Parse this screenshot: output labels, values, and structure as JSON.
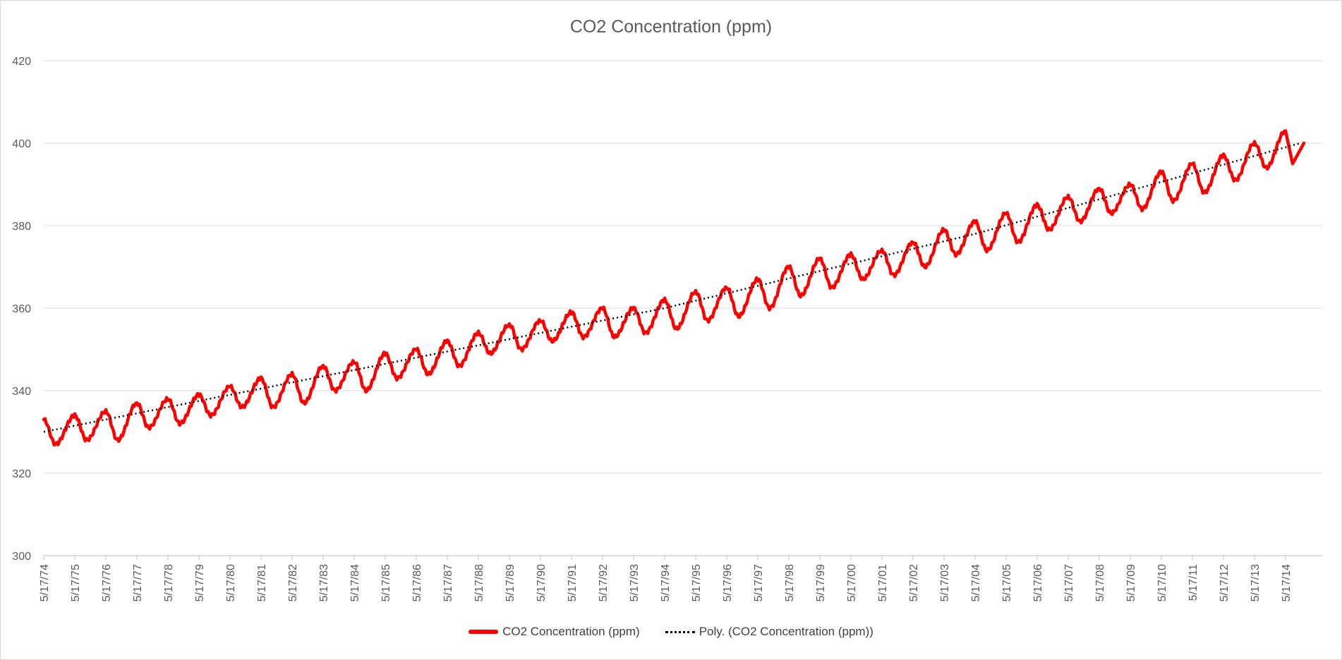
{
  "chart_data": {
    "type": "line",
    "title": "CO2 Concentration (ppm)",
    "xlabel": "",
    "ylabel": "",
    "ylim": [
      300,
      420
    ],
    "y_ticks": [
      "300",
      "320",
      "340",
      "360",
      "380",
      "400",
      "420"
    ],
    "x_ticks": [
      "5/17/74",
      "5/17/75",
      "5/17/76",
      "5/17/77",
      "5/17/78",
      "5/17/79",
      "5/17/80",
      "5/17/81",
      "5/17/82",
      "5/17/83",
      "5/17/84",
      "5/17/85",
      "5/17/86",
      "5/17/87",
      "5/17/88",
      "5/17/89",
      "5/17/90",
      "5/17/91",
      "5/17/92",
      "5/17/93",
      "5/17/94",
      "5/17/95",
      "5/17/96",
      "5/17/97",
      "5/17/98",
      "5/17/99",
      "5/17/00",
      "5/17/01",
      "5/17/02",
      "5/17/03",
      "5/17/04",
      "5/17/05",
      "5/17/06",
      "5/17/07",
      "5/17/08",
      "5/17/09",
      "5/17/10",
      "5/17/11",
      "5/17/12",
      "5/17/13",
      "5/17/14"
    ],
    "grid": true,
    "legend_position": "bottom",
    "series": [
      {
        "name": "CO2 Concentration (ppm)",
        "color": "#ff0000",
        "style": "solid",
        "x": [
          "5/17/74",
          "5/17/75",
          "5/17/76",
          "5/17/77",
          "5/17/78",
          "5/17/79",
          "5/17/80",
          "5/17/81",
          "5/17/82",
          "5/17/83",
          "5/17/84",
          "5/17/85",
          "5/17/86",
          "5/17/87",
          "5/17/88",
          "5/17/89",
          "5/17/90",
          "5/17/91",
          "5/17/92",
          "5/17/93",
          "5/17/94",
          "5/17/95",
          "5/17/96",
          "5/17/97",
          "5/17/98",
          "5/17/99",
          "5/17/00",
          "5/17/01",
          "5/17/02",
          "5/17/03",
          "5/17/04",
          "5/17/05",
          "5/17/06",
          "5/17/07",
          "5/17/08",
          "5/17/09",
          "5/17/10",
          "5/17/11",
          "5/17/12",
          "5/17/13",
          "5/17/14"
        ],
        "y_max": [
          333,
          334,
          335,
          337,
          338,
          339,
          341,
          343,
          344,
          346,
          347,
          349,
          350,
          352,
          354,
          356,
          357,
          359,
          360,
          360,
          362,
          364,
          365,
          367,
          370,
          372,
          373,
          374,
          376,
          379,
          381,
          383,
          385,
          387,
          389,
          390,
          393,
          395,
          397,
          400,
          403
        ],
        "y_min": [
          327,
          328,
          328,
          331,
          332,
          334,
          336,
          336,
          337,
          340,
          340,
          343,
          344,
          346,
          349,
          350,
          352,
          353,
          353,
          354,
          355,
          357,
          358,
          360,
          363,
          365,
          367,
          368,
          370,
          373,
          374,
          376,
          379,
          381,
          383,
          384,
          386,
          388,
          391,
          394,
          395
        ]
      },
      {
        "name": "Poly.  (CO2 Concentration (ppm))",
        "color": "#000000",
        "style": "dotted",
        "x": [
          "5/17/74",
          "5/17/84",
          "5/17/94",
          "5/17/04",
          "5/17/14"
        ],
        "y": [
          330,
          345,
          360,
          378,
          399
        ]
      }
    ]
  }
}
